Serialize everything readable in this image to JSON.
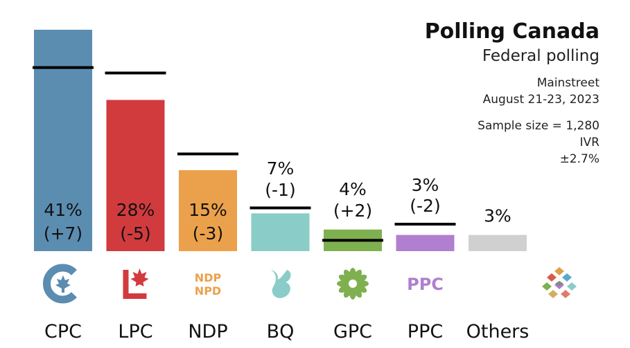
{
  "header": {
    "title": "Polling Canada",
    "subtitle": "Federal polling",
    "pollster": "Mainstreet",
    "dates": "August 21-23, 2023",
    "sample_size": "Sample size = 1,280",
    "method": "IVR",
    "margin_of_error": "±2.7%"
  },
  "colors": {
    "CPC": "#5b8db1",
    "LPC": "#d13b3e",
    "NDP": "#eba14b",
    "BQ": "#8accc8",
    "GPC": "#7fb04f",
    "PPC": "#b07fcf",
    "Others": "#d0d0d0"
  },
  "icons": [
    "cpc-logo-icon",
    "lpc-logo-icon",
    "ndp-logo-icon",
    "bq-logo-icon",
    "gpc-logo-icon",
    "ppc-logo-icon",
    "others-logo-icon"
  ],
  "chart_data": {
    "type": "bar",
    "categories": [
      "CPC",
      "LPC",
      "NDP",
      "BQ",
      "GPC",
      "PPC",
      "Others"
    ],
    "values": [
      41,
      28,
      15,
      7,
      4,
      3,
      3
    ],
    "previous_values": [
      34,
      33,
      18,
      8,
      2,
      5,
      null
    ],
    "value_labels": [
      "41%",
      "28%",
      "15%",
      "7%",
      "4%",
      "3%",
      "3%"
    ],
    "change_labels": [
      "(+7)",
      "(-5)",
      "(-3)",
      "(-1)",
      "(+2)",
      "(-2)",
      ""
    ],
    "logo_text": {
      "NDP": [
        "NDP",
        "NPD"
      ],
      "PPC": "PPC"
    },
    "ylim": [
      0,
      41
    ],
    "grid": false,
    "legend": "none"
  }
}
